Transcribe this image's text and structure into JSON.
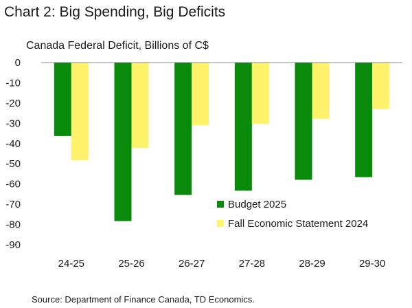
{
  "title": "Chart 2: Big Spending, Big Deficits",
  "subtitle": "Canada Federal Deficit, Billions of C$",
  "source": "Source: Department of Finance Canada, TD Economics.",
  "chart_data": {
    "type": "bar",
    "categories": [
      "24-25",
      "25-26",
      "26-27",
      "27-28",
      "28-29",
      "29-30"
    ],
    "series": [
      {
        "name": "Budget 2025",
        "color": "#0a8a0a",
        "values": [
          -36.3,
          -78.3,
          -65.4,
          -63.3,
          -57.9,
          -56.6
        ]
      },
      {
        "name": "Fall Economic Statement 2024",
        "color": "#fff36b",
        "values": [
          -48.3,
          -42.2,
          -31.0,
          -30.3,
          -27.8,
          -23.0
        ]
      }
    ],
    "ylim": [
      -90,
      0
    ],
    "yticks": [
      0,
      -10,
      -20,
      -30,
      -40,
      -50,
      -60,
      -70,
      -80,
      -90
    ],
    "legend_position": "bottom-right",
    "grid": false
  }
}
